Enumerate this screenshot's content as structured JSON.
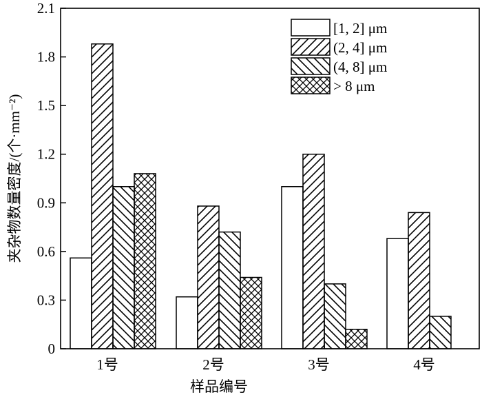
{
  "chart_data": {
    "type": "bar",
    "title": "",
    "xlabel": "样品编号",
    "ylabel": "夹杂物数量密度/(个·mm⁻²)",
    "ylim": [
      0,
      2.1
    ],
    "yticks": [
      "0",
      "0.3",
      "0.6",
      "0.9",
      "1.2",
      "1.5",
      "1.8",
      "2.1"
    ],
    "categories": [
      "1号",
      "2号",
      "3号",
      "4号"
    ],
    "series": [
      {
        "name": "[1, 2] μm",
        "pattern": "none",
        "values": [
          0.56,
          0.32,
          1.0,
          0.68
        ]
      },
      {
        "name": "(2, 4] μm",
        "pattern": "forward-hatch",
        "values": [
          1.88,
          0.88,
          1.2,
          0.84
        ]
      },
      {
        "name": "(4, 8] μm",
        "pattern": "back-hatch",
        "values": [
          1.0,
          0.72,
          0.4,
          0.2
        ]
      },
      {
        "name": "> 8 μm",
        "pattern": "cross-hatch",
        "values": [
          1.08,
          0.44,
          0.12,
          0
        ]
      }
    ],
    "legend_position": "top-right",
    "grid": false
  }
}
